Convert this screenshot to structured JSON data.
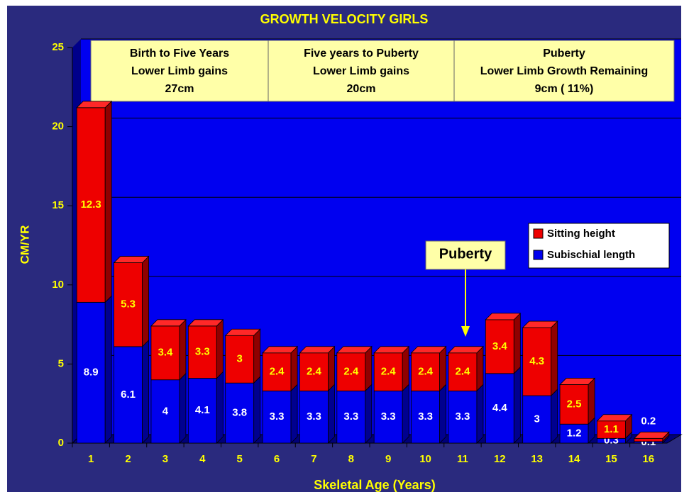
{
  "chart_data": {
    "type": "bar",
    "stacked": true,
    "title": "GROWTH VELOCITY GIRLS",
    "y_label": "CM/YR",
    "x_label": "Skeletal Age (Years)",
    "categories": [
      "1",
      "2",
      "3",
      "4",
      "5",
      "6",
      "7",
      "8",
      "9",
      "10",
      "11",
      "12",
      "13",
      "14",
      "15",
      "16"
    ],
    "series": [
      {
        "name": "Subischial length",
        "color": "#0000ee",
        "values": [
          8.9,
          6.1,
          4,
          4.1,
          3.8,
          3.3,
          3.3,
          3.3,
          3.3,
          3.3,
          3.3,
          4.4,
          3,
          1.2,
          0.3,
          0.1
        ]
      },
      {
        "name": "Sitting height",
        "color": "#ee0000",
        "values": [
          12.3,
          5.3,
          3.4,
          3.3,
          3,
          2.4,
          2.4,
          2.4,
          2.4,
          2.4,
          2.4,
          3.4,
          4.3,
          2.5,
          1.1,
          0.2
        ]
      }
    ],
    "ylim": [
      0,
      25
    ],
    "yticks": [
      0,
      5,
      10,
      15,
      20,
      25
    ],
    "grid": true,
    "annotations": [
      {
        "lines": [
          "Birth to Five Years",
          "Lower Limb gains",
          "27cm"
        ]
      },
      {
        "lines": [
          "Five years to Puberty",
          "Lower Limb gains",
          "20cm"
        ]
      },
      {
        "lines": [
          "Puberty",
          "Lower Limb Growth Remaining",
          "9cm ( 11%)"
        ]
      }
    ],
    "callout": "Puberty"
  }
}
